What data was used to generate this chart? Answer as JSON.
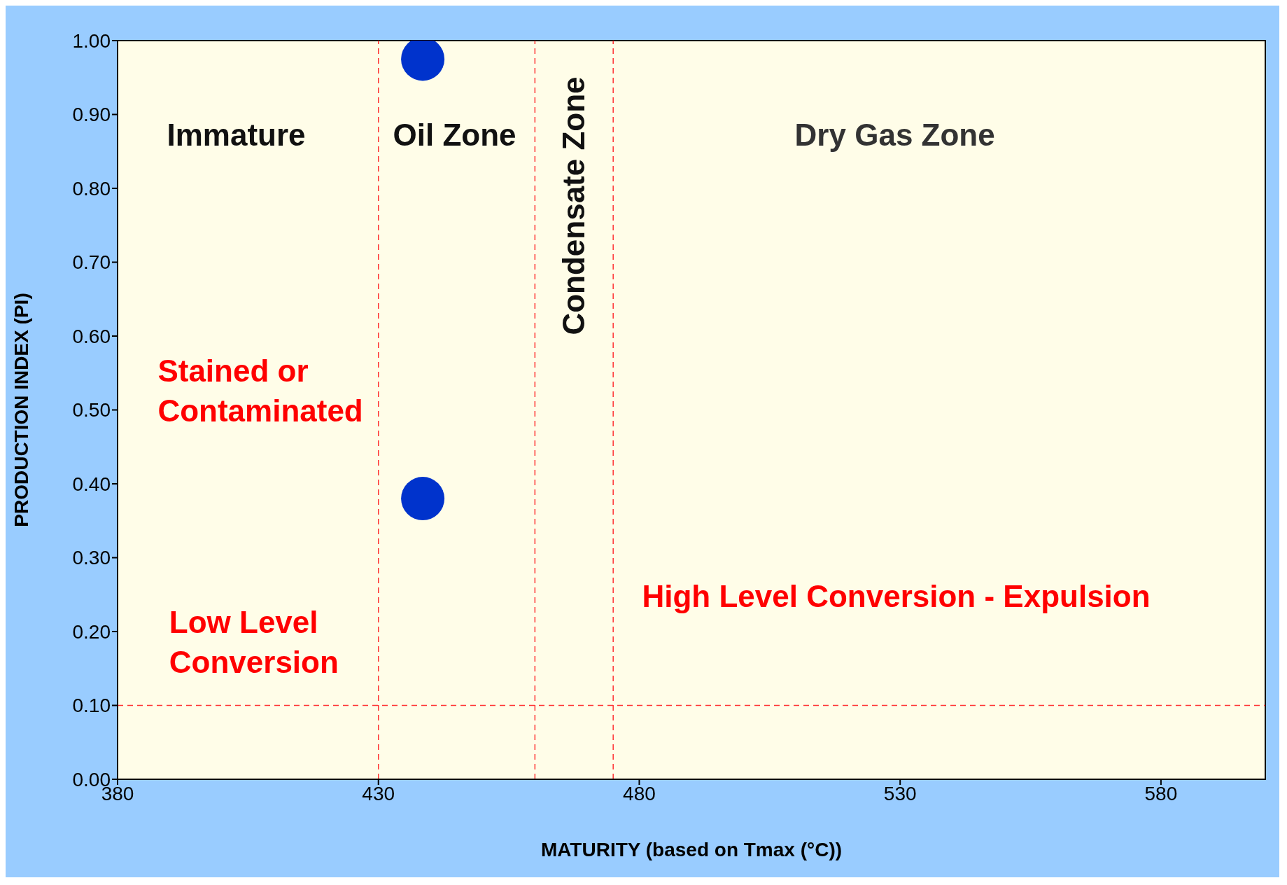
{
  "chart_data": {
    "type": "scatter",
    "xlabel": "MATURITY (based on Tmax (°C))",
    "ylabel": "PRODUCTION INDEX (PI)",
    "x": [
      438.5,
      438.5
    ],
    "series": [
      {
        "color": "#0033cc",
        "values": [
          0.975,
          0.38
        ]
      }
    ],
    "marker": "circle",
    "xlim": [
      380,
      600
    ],
    "xticks": [
      380,
      430,
      480,
      530,
      580
    ],
    "ylim": [
      0,
      1
    ],
    "yticks": [
      {
        "value": 0,
        "label": "0.00"
      },
      {
        "value": 0.1,
        "label": "0.10"
      },
      {
        "value": 0.2,
        "label": "0.20"
      },
      {
        "value": 0.3,
        "label": "0.30"
      },
      {
        "value": 0.4,
        "label": "0.40"
      },
      {
        "value": 0.5,
        "label": "0.50"
      },
      {
        "value": 0.6,
        "label": "0.60"
      },
      {
        "value": 0.7,
        "label": "0.70"
      },
      {
        "value": 0.8,
        "label": "0.80"
      },
      {
        "value": 0.9,
        "label": "0.90"
      },
      {
        "value": 1,
        "label": "1.00"
      }
    ],
    "ref_lines": [
      {
        "axis": "x",
        "value": 430,
        "color": "#ff3333",
        "line_style": "dashed"
      },
      {
        "axis": "x",
        "value": 460,
        "color": "#ff3333",
        "line_style": "dashed"
      },
      {
        "axis": "x",
        "value": 475,
        "color": "#ff3333",
        "line_style": "dashed"
      },
      {
        "axis": "y",
        "value": 0.1,
        "color": "#ff3333",
        "line_style": "dashed"
      }
    ],
    "annotations": [
      "Immature",
      "Oil Zone",
      "Condensate Zone",
      "Dry Gas Zone",
      "Stained or Contaminated",
      "Low Level Conversion",
      "High Level Conversion - Expulsion"
    ]
  }
}
